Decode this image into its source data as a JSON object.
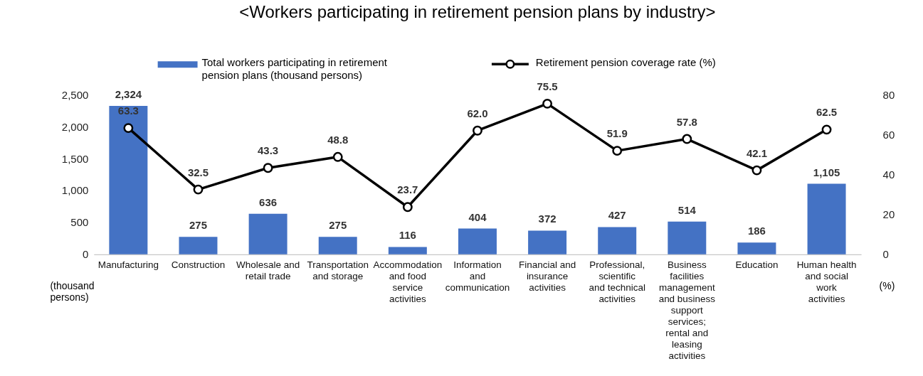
{
  "chart_data": {
    "type": "bar",
    "title": "<Workers participating in retirement pension plans by industry>",
    "categories": [
      "Manufacturing",
      "Construction",
      "Wholesale and retail trade",
      "Transportation and storage",
      "Accommodation and food service activities",
      "Information and communication",
      "Financial and insurance activities",
      "Professional, scientific and technical activities",
      "Business facilities management and business support services; rental and leasing activities",
      "Education",
      "Human health and social work activities"
    ],
    "series": [
      {
        "name": "Total workers participating in retirement pension plans (thousand persons)",
        "color": "#4472c4",
        "values": [
          2324,
          275,
          636,
          275,
          116,
          404,
          372,
          427,
          514,
          186,
          1105
        ],
        "value_labels": [
          "2,324",
          "275",
          "636",
          "275",
          "116",
          "404",
          "372",
          "427",
          "514",
          "186",
          "1,105"
        ]
      },
      {
        "name": "Retirement pension coverage rate (%)",
        "type": "line",
        "axis": "y2",
        "color": "#000000",
        "marker": "circle",
        "values": [
          63.3,
          32.5,
          43.3,
          48.8,
          23.7,
          62.0,
          75.5,
          51.9,
          57.8,
          42.1,
          62.5
        ],
        "value_labels": [
          "63.3",
          "32.5",
          "43.3",
          "48.8",
          "23.7",
          "62.0",
          "75.5",
          "51.9",
          "57.8",
          "42.1",
          "62.5"
        ]
      }
    ],
    "ylabel": "(thousand persons)",
    "y2label": "(%)",
    "ylim": [
      0,
      2500
    ],
    "yticks": [
      0,
      500,
      {
        "value": 1000,
        "label": "1,000"
      },
      {
        "value": 1500,
        "label": "1,500"
      },
      {
        "value": 2000,
        "label": "2,000"
      },
      {
        "value": 2500,
        "label": "2,500"
      }
    ],
    "y2lim": [
      0,
      80
    ],
    "y2ticks": [
      0,
      20,
      40,
      60,
      80
    ],
    "grid": false,
    "legend": "top"
  }
}
